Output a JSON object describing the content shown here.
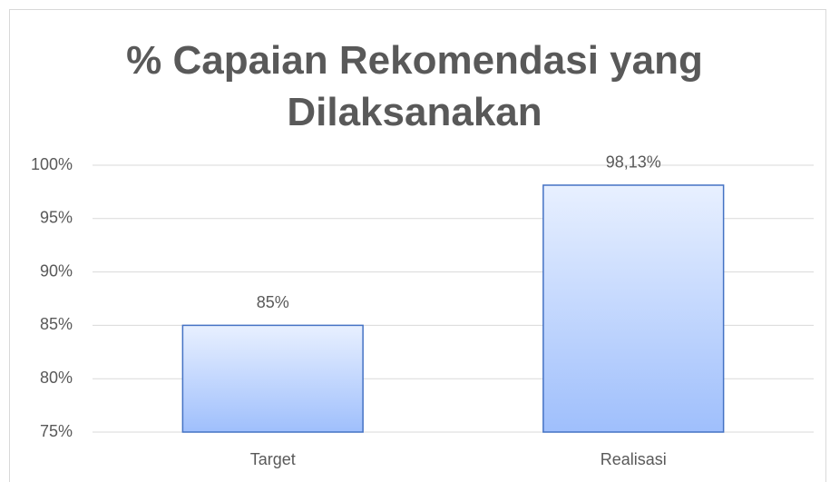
{
  "chart_data": {
    "type": "bar",
    "title": "% Capaian Rekomendasi yang Dilaksanakan",
    "categories": [
      "Target",
      "Realisasi"
    ],
    "values": [
      85,
      98.13
    ],
    "value_labels": [
      "85%",
      "98,13%"
    ],
    "color": "#4472c4",
    "ylim": [
      75,
      100
    ],
    "yticks": [
      {
        "value": 75,
        "label": "75%"
      },
      {
        "value": 80,
        "label": "80%"
      },
      {
        "value": 85,
        "label": "85%"
      },
      {
        "value": 90,
        "label": "90%"
      },
      {
        "value": 95,
        "label": "95%"
      },
      {
        "value": 100,
        "label": "100%"
      }
    ],
    "grid": true
  }
}
